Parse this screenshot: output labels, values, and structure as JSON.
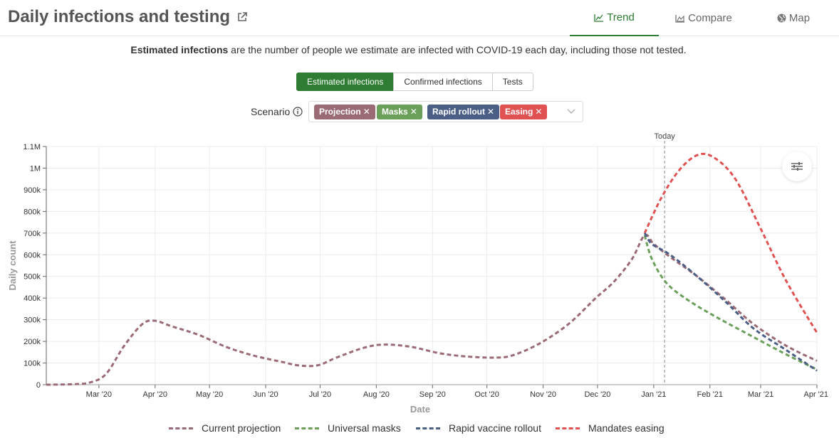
{
  "header": {
    "title": "Daily infections and testing",
    "tabs": [
      {
        "label": "Trend",
        "icon": "line-chart-icon",
        "active": true
      },
      {
        "label": "Compare",
        "icon": "area-chart-icon",
        "active": false
      },
      {
        "label": "Map",
        "icon": "globe-icon",
        "active": false
      }
    ]
  },
  "description": {
    "bold": "Estimated infections",
    "rest": " are the number of people we estimate are infected with COVID-19 each day, including those not tested."
  },
  "metric_tabs": [
    {
      "label": "Estimated infections",
      "active": true
    },
    {
      "label": "Confirmed infections",
      "active": false
    },
    {
      "label": "Tests",
      "active": false
    }
  ],
  "scenario": {
    "label": "Scenario",
    "chips": [
      {
        "label": "Projection",
        "color": "#9b6b75"
      },
      {
        "label": "Masks",
        "color": "#6aa05a"
      },
      {
        "label": "Rapid rollout",
        "color": "#4a5e86"
      },
      {
        "label": "Easing",
        "color": "#e05252"
      }
    ]
  },
  "chart_data": {
    "type": "line",
    "xlabel": "Date",
    "ylabel": "Daily count",
    "ylim": [
      0,
      1100000
    ],
    "xlim": [
      "2020-02-01",
      "2021-04-01"
    ],
    "grid": true,
    "x_ticks": [
      "Mar '20",
      "Apr '20",
      "May '20",
      "Jun '20",
      "Jul '20",
      "Aug '20",
      "Sep '20",
      "Oct '20",
      "Nov '20",
      "Dec '20",
      "Jan '21",
      "Feb '21",
      "Mar '21",
      "Apr '21"
    ],
    "y_ticks": [
      "0",
      "100k",
      "200k",
      "300k",
      "400k",
      "500k",
      "600k",
      "700k",
      "800k",
      "900k",
      "1M",
      "1.1M"
    ],
    "annotation": {
      "label": "Today",
      "date": "2021-01-07"
    },
    "legend_position": "bottom",
    "series": [
      {
        "name": "Current projection",
        "color": "#9b6b75",
        "points": [
          [
            "2020-02-01",
            0
          ],
          [
            "2020-02-15",
            2000
          ],
          [
            "2020-02-25",
            10000
          ],
          [
            "2020-03-05",
            50000
          ],
          [
            "2020-03-15",
            180000
          ],
          [
            "2020-03-25",
            280000
          ],
          [
            "2020-04-01",
            295000
          ],
          [
            "2020-04-10",
            270000
          ],
          [
            "2020-04-25",
            230000
          ],
          [
            "2020-05-10",
            175000
          ],
          [
            "2020-05-25",
            135000
          ],
          [
            "2020-06-10",
            105000
          ],
          [
            "2020-06-20",
            88000
          ],
          [
            "2020-06-30",
            90000
          ],
          [
            "2020-07-10",
            125000
          ],
          [
            "2020-07-25",
            170000
          ],
          [
            "2020-08-05",
            185000
          ],
          [
            "2020-08-20",
            175000
          ],
          [
            "2020-09-05",
            145000
          ],
          [
            "2020-09-20",
            130000
          ],
          [
            "2020-10-05",
            125000
          ],
          [
            "2020-10-15",
            135000
          ],
          [
            "2020-10-30",
            190000
          ],
          [
            "2020-11-15",
            280000
          ],
          [
            "2020-11-30",
            400000
          ],
          [
            "2020-12-10",
            475000
          ],
          [
            "2020-12-20",
            580000
          ],
          [
            "2020-12-27",
            690000
          ],
          [
            "2021-01-01",
            650000
          ],
          [
            "2021-01-10",
            590000
          ],
          [
            "2021-01-25",
            500000
          ],
          [
            "2021-02-10",
            390000
          ],
          [
            "2021-02-25",
            280000
          ],
          [
            "2021-03-15",
            180000
          ],
          [
            "2021-04-01",
            110000
          ]
        ]
      },
      {
        "name": "Universal masks",
        "color": "#6aa05a",
        "points": [
          [
            "2020-12-27",
            690000
          ],
          [
            "2020-12-31",
            580000
          ],
          [
            "2021-01-08",
            470000
          ],
          [
            "2021-01-20",
            390000
          ],
          [
            "2021-02-05",
            310000
          ],
          [
            "2021-02-25",
            220000
          ],
          [
            "2021-03-15",
            140000
          ],
          [
            "2021-04-01",
            70000
          ]
        ]
      },
      {
        "name": "Rapid vaccine rollout",
        "color": "#4a5e86",
        "points": [
          [
            "2020-12-27",
            700000
          ],
          [
            "2020-12-31",
            650000
          ],
          [
            "2021-01-10",
            600000
          ],
          [
            "2021-01-25",
            500000
          ],
          [
            "2021-02-10",
            380000
          ],
          [
            "2021-02-25",
            260000
          ],
          [
            "2021-03-15",
            160000
          ],
          [
            "2021-04-01",
            65000
          ]
        ]
      },
      {
        "name": "Mandates easing",
        "color": "#e05252",
        "points": [
          [
            "2020-12-27",
            700000
          ],
          [
            "2021-01-05",
            860000
          ],
          [
            "2021-01-15",
            990000
          ],
          [
            "2021-01-25",
            1060000
          ],
          [
            "2021-02-03",
            1050000
          ],
          [
            "2021-02-15",
            950000
          ],
          [
            "2021-03-01",
            720000
          ],
          [
            "2021-03-15",
            480000
          ],
          [
            "2021-04-01",
            240000
          ]
        ]
      }
    ]
  }
}
